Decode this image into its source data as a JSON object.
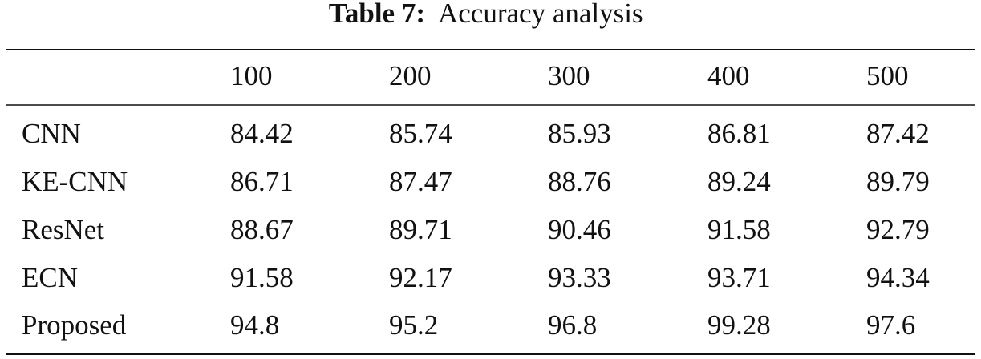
{
  "caption": {
    "label": "Table 7:",
    "text": "Accuracy analysis"
  },
  "table": {
    "header": [
      "",
      "100",
      "200",
      "300",
      "400",
      "500"
    ],
    "rows": [
      [
        "CNN",
        "84.42",
        "85.74",
        "85.93",
        "86.81",
        "87.42"
      ],
      [
        "KE-CNN",
        "86.71",
        "87.47",
        "88.76",
        "89.24",
        "89.79"
      ],
      [
        "ResNet",
        "88.67",
        "89.71",
        "90.46",
        "91.58",
        "92.79"
      ],
      [
        "ECN",
        "91.58",
        "92.17",
        "93.33",
        "93.71",
        "94.34"
      ],
      [
        "Proposed",
        "94.8",
        "95.2",
        "96.8",
        "99.28",
        "97.6"
      ]
    ]
  }
}
